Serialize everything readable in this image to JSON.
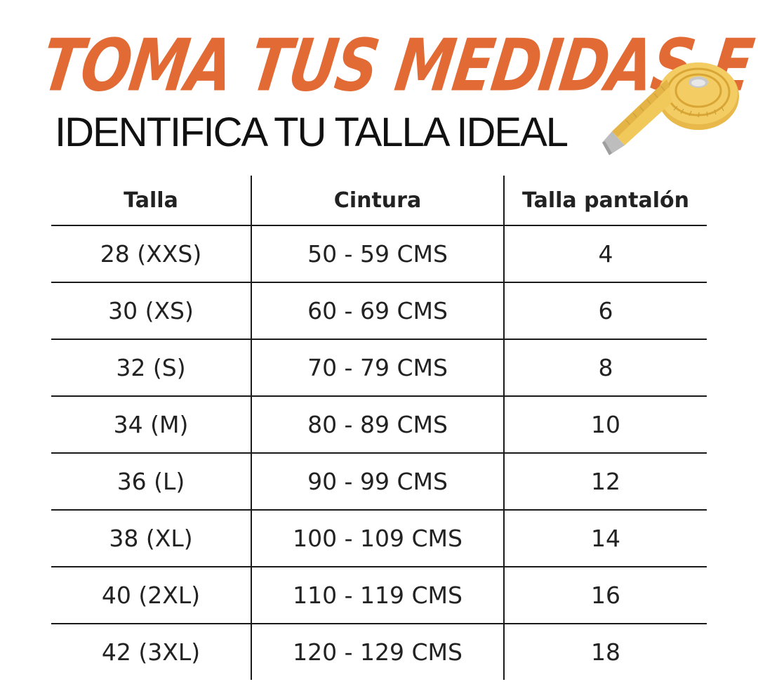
{
  "header": {
    "title_line1": "TOMA TUS MEDIDAS E",
    "title_line2": "IDENTIFICA TU TALLA IDEAL",
    "icon": "measuring-tape-icon",
    "accent_color": "#e26b35"
  },
  "table": {
    "headers": [
      "Talla",
      "Cintura",
      "Talla pantalón"
    ],
    "rows": [
      [
        "28 (XXS)",
        "50 - 59 CMS",
        "4"
      ],
      [
        "30 (XS)",
        "60 - 69 CMS",
        "6"
      ],
      [
        "32 (S)",
        "70 - 79 CMS",
        "8"
      ],
      [
        "34 (M)",
        "80 - 89 CMS",
        "10"
      ],
      [
        "36 (L)",
        "90 - 99 CMS",
        "12"
      ],
      [
        "38 (XL)",
        "100 - 109 CMS",
        "14"
      ],
      [
        "40 (2XL)",
        "110 - 119 CMS",
        "16"
      ],
      [
        "42 (3XL)",
        "120 - 129 CMS",
        "18"
      ]
    ]
  }
}
